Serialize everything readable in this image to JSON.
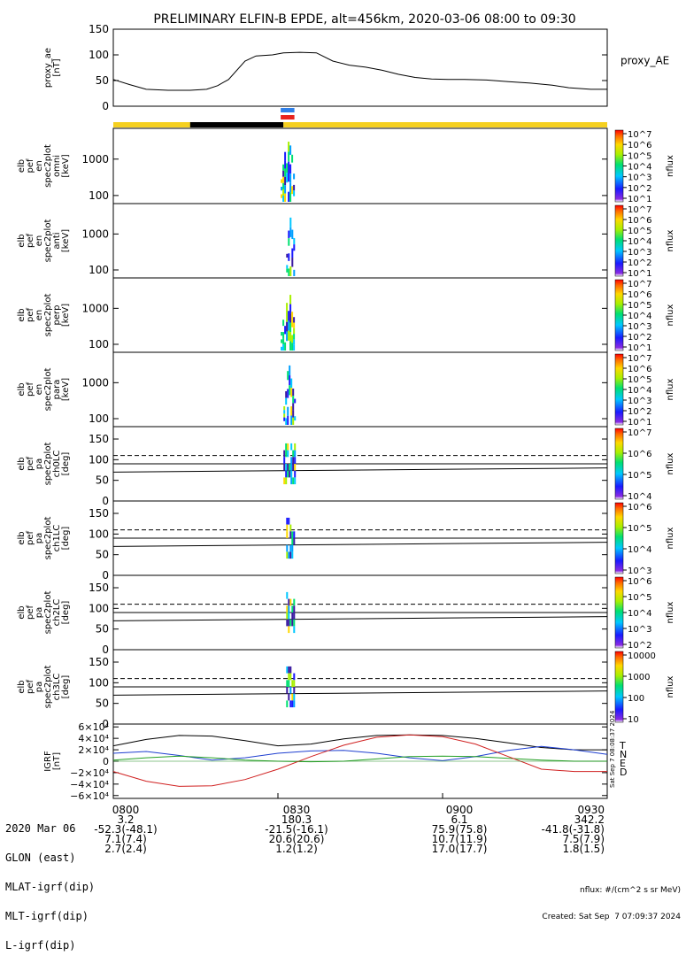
{
  "orbit": {
    "labels": [
      "2020 Mar 06",
      "GLON (east)",
      "MLAT-igrf(dip)",
      "MLT-igrf(dip)",
      "L-igrf(dip)"
    ],
    "columns": [
      {
        "time": "0800",
        "values": [
          "3.2",
          "-52.3(-48.1)",
          "7.1(7.4)",
          "2.7(2.4)"
        ]
      },
      {
        "time": "0830",
        "values": [
          "180.3",
          "-21.5(-16.1)",
          "20.6(20.6)",
          "1.2(1.2)"
        ]
      },
      {
        "time": "0900",
        "values": [
          "6.1",
          "75.9(75.8)",
          "10.7(11.9)",
          "17.0(17.7)"
        ]
      },
      {
        "time": "0930",
        "values": [
          "342.2",
          "-41.8(-31.8)",
          "7.5(7.9)",
          "1.8(1.5)"
        ]
      }
    ]
  },
  "footer": {
    "units": "nflux: #/(cm^2 s sr MeV)",
    "created": "Created: Sat Sep  7 07:09:37 2024",
    "side_stamp": "Sat Sep  7 08:08:37 2024"
  },
  "chart_data": {
    "title": "PRELIMINARY ELFIN-B EPDE, alt=456km, 2020-03-06 08:00 to 09:30",
    "type": "line",
    "xlim": [
      "08:00",
      "09:30"
    ],
    "xticks": [
      "0800",
      "0830",
      "0900",
      "0930"
    ],
    "colors": {
      "bar_yellow": "#f5d020",
      "bar_black": "#000000",
      "spin_blue": "#2f7fe8",
      "spin_red": "#e8231e"
    },
    "status_bar": [
      {
        "start": "08:00",
        "end": "08:14",
        "color": "yellow"
      },
      {
        "start": "08:14",
        "end": "08:31",
        "color": "black"
      },
      {
        "start": "08:31",
        "end": "09:30",
        "color": "yellow"
      }
    ],
    "science_markers": [
      {
        "start": "08:30.5",
        "end": "08:33",
        "color": "blue"
      },
      {
        "start": "08:30.5",
        "end": "08:33",
        "color": "red"
      }
    ],
    "panels": [
      {
        "kind": "line",
        "ylabel": [
          "proxy_ae",
          "[nT]"
        ],
        "ylim": [
          0,
          150
        ],
        "yticks": [
          "150",
          "100",
          "50",
          "0"
        ],
        "legend": [
          "proxy_AE"
        ],
        "series": [
          {
            "name": "proxy_AE",
            "x": [
              "08:00",
              "08:03",
              "08:06",
              "08:10",
              "08:14",
              "08:17",
              "08:19",
              "08:21",
              "08:24",
              "08:26",
              "08:29",
              "08:31",
              "08:34",
              "08:37",
              "08:40",
              "08:43",
              "08:46",
              "08:49",
              "08:52",
              "08:55",
              "08:58",
              "09:01",
              "09:04",
              "09:08",
              "09:12",
              "09:16",
              "09:20",
              "09:23",
              "09:27",
              "09:30"
            ],
            "values": [
              52,
              42,
              33,
              31,
              31,
              33,
              40,
              52,
              88,
              98,
              100,
              104,
              105,
              104,
              88,
              80,
              76,
              70,
              62,
              56,
              53,
              52,
              52,
              51,
              48,
              45,
              41,
              36,
              33,
              33
            ]
          }
        ]
      },
      {
        "kind": "spectrogram",
        "ylabel": [
          "elb",
          "pef",
          "en",
          "spec2plot",
          "omni",
          "[keV]"
        ],
        "ylog": true,
        "ylim": [
          60,
          7000
        ],
        "yticks": [
          "1000",
          "100"
        ],
        "zlabel": "nflux",
        "zlog": true,
        "zticks": [
          "10^7",
          "10^6",
          "10^5",
          "10^4",
          "10^3",
          "10^2",
          "10^1"
        ],
        "zlim": [
          10,
          10000000
        ],
        "burst": {
          "start": "08:30.5",
          "end": "08:33",
          "peak_time": "08:31.8"
        }
      },
      {
        "kind": "spectrogram",
        "ylabel": [
          "elb",
          "pef",
          "en",
          "spec2plot",
          "anti",
          "[keV]"
        ],
        "ylog": true,
        "ylim": [
          60,
          7000
        ],
        "yticks": [
          "1000",
          "100"
        ],
        "zlabel": "nflux",
        "zlog": true,
        "zticks": [
          "10^7",
          "10^6",
          "10^5",
          "10^4",
          "10^3",
          "10^2",
          "10^1"
        ],
        "zlim": [
          10,
          10000000
        ],
        "burst": {
          "start": "08:31.5",
          "end": "08:33",
          "peak_time": "08:32.5"
        }
      },
      {
        "kind": "spectrogram",
        "ylabel": [
          "elb",
          "pef",
          "en",
          "spec2plot",
          "perp",
          "[keV]"
        ],
        "ylog": true,
        "ylim": [
          60,
          7000
        ],
        "yticks": [
          "1000",
          "100"
        ],
        "zlabel": "nflux",
        "zlog": true,
        "zticks": [
          "10^7",
          "10^6",
          "10^5",
          "10^4",
          "10^3",
          "10^2",
          "10^1"
        ],
        "zlim": [
          10,
          10000000
        ],
        "burst": {
          "start": "08:30.5",
          "end": "08:33",
          "peak_time": "08:31.8"
        }
      },
      {
        "kind": "spectrogram",
        "ylabel": [
          "elb",
          "pef",
          "en",
          "spec2plot",
          "para",
          "[keV]"
        ],
        "ylog": true,
        "ylim": [
          60,
          7000
        ],
        "yticks": [
          "1000",
          "100"
        ],
        "zlabel": "nflux",
        "zlog": true,
        "zticks": [
          "10^7",
          "10^6",
          "10^5",
          "10^4",
          "10^3",
          "10^2",
          "10^1"
        ],
        "zlim": [
          10,
          10000000
        ],
        "burst": {
          "start": "08:31",
          "end": "08:33",
          "peak_time": "08:32.5"
        }
      },
      {
        "kind": "pitch",
        "ylabel": [
          "elb",
          "pef",
          "pa",
          "spec2plot",
          "ch0LC",
          "[deg]"
        ],
        "ylim": [
          0,
          180
        ],
        "yticks": [
          "150",
          "100",
          "50",
          "0"
        ],
        "zlabel": "nflux",
        "zlog": true,
        "zticks": [
          "10^7",
          "10^6",
          "10^5",
          "10^4"
        ],
        "zlim": [
          1000,
          10000000
        ],
        "lines": {
          "solid_upper": [
            90,
            90
          ],
          "solid_lower": [
            70,
            80
          ],
          "dashed": [
            110,
            110
          ]
        },
        "burst": {
          "start": "08:31",
          "end": "08:33"
        }
      },
      {
        "kind": "pitch",
        "ylabel": [
          "elb",
          "pef",
          "pa",
          "spec2plot",
          "ch1LC",
          "[deg]"
        ],
        "ylim": [
          0,
          180
        ],
        "yticks": [
          "150",
          "100",
          "50",
          "0"
        ],
        "zlabel": "nflux",
        "zlog": true,
        "zticks": [
          "10^6",
          "10^5",
          "10^4",
          "10^3"
        ],
        "zlim": [
          300,
          3000000
        ],
        "lines": {
          "solid_upper": [
            90,
            90
          ],
          "solid_lower": [
            70,
            80
          ],
          "dashed": [
            110,
            110
          ]
        },
        "burst": {
          "start": "08:31.5",
          "end": "08:33"
        }
      },
      {
        "kind": "pitch",
        "ylabel": [
          "elb",
          "pef",
          "pa",
          "spec2plot",
          "ch2LC",
          "[deg]"
        ],
        "ylim": [
          0,
          180
        ],
        "yticks": [
          "150",
          "100",
          "50",
          "0"
        ],
        "zlabel": "nflux",
        "zlog": true,
        "zticks": [
          "10^6",
          "10^5",
          "10^4",
          "10^3",
          "10^2"
        ],
        "zlim": [
          60,
          3000000
        ],
        "lines": {
          "solid_upper": [
            90,
            90
          ],
          "solid_lower": [
            70,
            80
          ],
          "dashed": [
            110,
            110
          ]
        },
        "burst": {
          "start": "08:31.5",
          "end": "08:33"
        }
      },
      {
        "kind": "pitch",
        "ylabel": [
          "elb",
          "pef",
          "pa",
          "spec2plot",
          "ch3LC",
          "[deg]"
        ],
        "ylim": [
          0,
          180
        ],
        "yticks": [
          "150",
          "100",
          "50",
          "0"
        ],
        "zlabel": "nflux",
        "zlog": true,
        "zticks": [
          "10000",
          "1000",
          "100",
          "10"
        ],
        "zlim": [
          10,
          20000
        ],
        "lines": {
          "solid_upper": [
            90,
            90
          ],
          "solid_lower": [
            70,
            80
          ],
          "dashed": [
            110,
            110
          ]
        },
        "burst": {
          "start": "08:31.5",
          "end": "08:33"
        }
      },
      {
        "kind": "line",
        "ylabel": [
          "IGRF",
          "[nT]"
        ],
        "ylim": [
          -65000,
          65000
        ],
        "yticks": [
          "6×10⁴",
          "4×10⁴",
          "2×10⁴",
          "0",
          "−2×10⁴",
          "−4×10⁴",
          "−6×10⁴"
        ],
        "ytick_values": [
          60000,
          40000,
          20000,
          0,
          -20000,
          -40000,
          -60000
        ],
        "legend": [
          "T",
          "N",
          "E",
          "D"
        ],
        "series": [
          {
            "name": "T",
            "color": "#000000",
            "x": [
              "08:00",
              "08:06",
              "08:12",
              "08:18",
              "08:24",
              "08:30",
              "08:36",
              "08:42",
              "08:48",
              "08:54",
              "09:00",
              "09:06",
              "09:12",
              "09:18",
              "09:24",
              "09:30"
            ],
            "values": [
              27000,
              38000,
              45000,
              44000,
              36000,
              27000,
              30000,
              39000,
              45000,
              46000,
              45000,
              40000,
              32000,
              24000,
              20000,
              20000
            ]
          },
          {
            "name": "N",
            "color": "#1f3fd0",
            "x": [
              "08:00",
              "08:06",
              "08:12",
              "08:18",
              "08:24",
              "08:30",
              "08:36",
              "08:42",
              "08:48",
              "08:54",
              "09:00",
              "09:06",
              "09:12",
              "09:18",
              "09:24",
              "09:30"
            ],
            "values": [
              14000,
              17000,
              10000,
              2000,
              6000,
              14000,
              18000,
              19000,
              14000,
              6000,
              1000,
              8000,
              19000,
              26000,
              20000,
              12000
            ]
          },
          {
            "name": "E",
            "color": "#25a025",
            "x": [
              "08:00",
              "08:06",
              "08:12",
              "08:18",
              "08:24",
              "08:30",
              "08:36",
              "08:42",
              "08:48",
              "08:54",
              "09:00",
              "09:06",
              "09:12",
              "09:18",
              "09:24",
              "09:30"
            ],
            "values": [
              2000,
              6000,
              9000,
              6000,
              2000,
              0,
              -1000,
              0,
              4000,
              8000,
              9000,
              8000,
              5000,
              2000,
              0,
              0
            ]
          },
          {
            "name": "D",
            "color": "#d02020",
            "x": [
              "08:00",
              "08:06",
              "08:12",
              "08:18",
              "08:24",
              "08:30",
              "08:36",
              "08:42",
              "08:48",
              "08:54",
              "09:00",
              "09:06",
              "09:12",
              "09:18",
              "09:24",
              "09:30"
            ],
            "values": [
              -18000,
              -35000,
              -44000,
              -43000,
              -32000,
              -14000,
              8000,
              28000,
              42000,
              46000,
              43000,
              30000,
              8000,
              -14000,
              -18000,
              -18000
            ]
          }
        ]
      }
    ]
  }
}
